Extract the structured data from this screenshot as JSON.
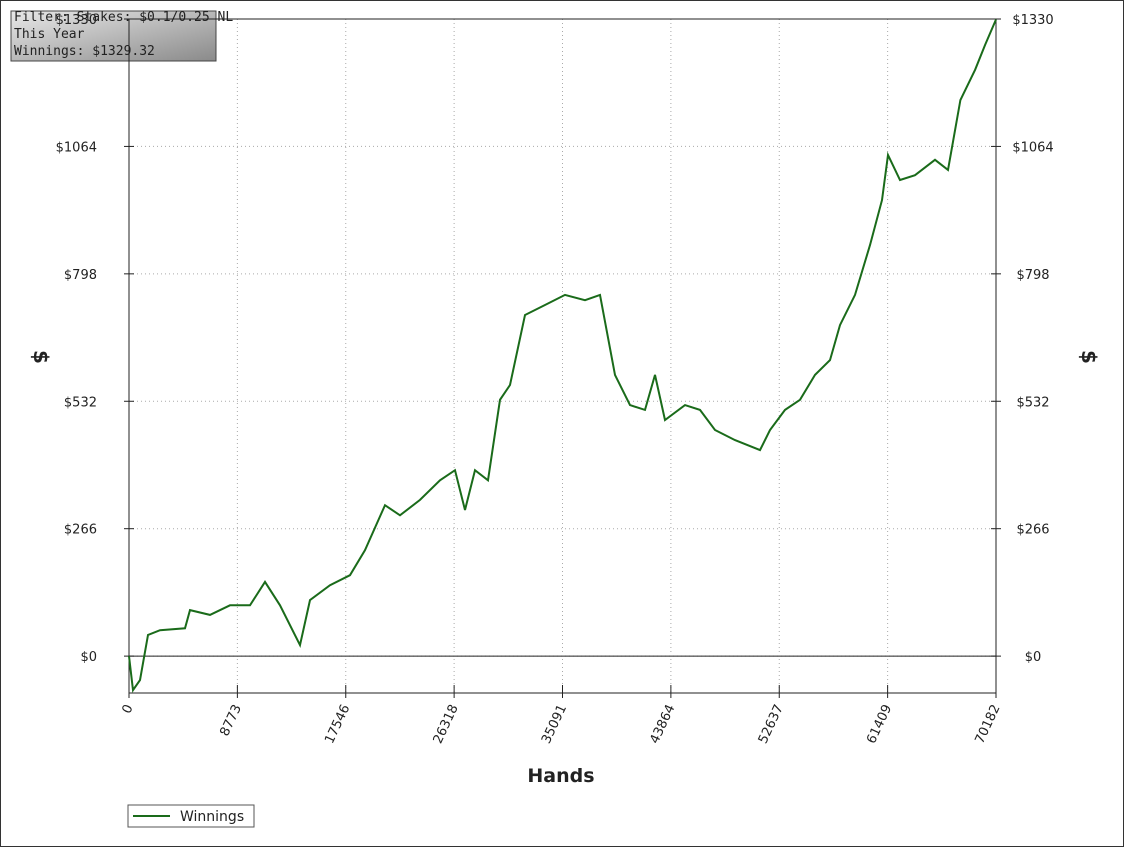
{
  "chart_data": {
    "type": "line",
    "filter_lines": [
      "Filter: Stakes: $0.1/0.25 NL",
      "This Year",
      "Winnings: $1329.32"
    ],
    "xlabel": "Hands",
    "ylabel": "$",
    "xlim": [
      0,
      70182
    ],
    "xticks": [
      0,
      8773,
      17546,
      26318,
      35091,
      43864,
      52637,
      61409,
      70182
    ],
    "ylim": [
      -77,
      1330
    ],
    "yticks": [
      {
        "value": 0,
        "label": "$0"
      },
      {
        "value": 266,
        "label": "$266"
      },
      {
        "value": 532,
        "label": "$532"
      },
      {
        "value": 798,
        "label": "$798"
      },
      {
        "value": 1064,
        "label": "$1064"
      },
      {
        "value": 1330,
        "label": "$1330"
      }
    ],
    "grid": true,
    "x": [
      0,
      324,
      890,
      1538,
      2510,
      4533,
      4938,
      6557,
      8176,
      9795,
      11009,
      12223,
      13842,
      14652,
      16271,
      17890,
      19104,
      20723,
      21937,
      23556,
      25175,
      26389,
      27199,
      28008,
      29060,
      30032,
      30841,
      32055,
      33674,
      35293,
      36912,
      38126,
      39341,
      40555,
      41769,
      42579,
      43388,
      45008,
      46222,
      47436,
      49055,
      51079,
      51888,
      53103,
      54317,
      55531,
      56745,
      57555,
      58769,
      59983,
      60955,
      61440,
      62412,
      63626,
      65245,
      66297,
      67299,
      68487,
      69297,
      70182
    ],
    "series": [
      {
        "name": "Winnings",
        "color": "#1a6b1a",
        "values": [
          0,
          -71,
          -50,
          44,
          54,
          58,
          96,
          86,
          106,
          106,
          155,
          106,
          23,
          117,
          148,
          169,
          221,
          315,
          294,
          326,
          367,
          388,
          305,
          388,
          367,
          535,
          566,
          712,
          733,
          754,
          743,
          754,
          587,
          524,
          514,
          587,
          493,
          524,
          514,
          472,
          451,
          430,
          472,
          514,
          535,
          587,
          618,
          691,
          754,
          858,
          952,
          1046,
          994,
          1004,
          1036,
          1015,
          1161,
          1224,
          1276,
          1329
        ]
      }
    ]
  }
}
